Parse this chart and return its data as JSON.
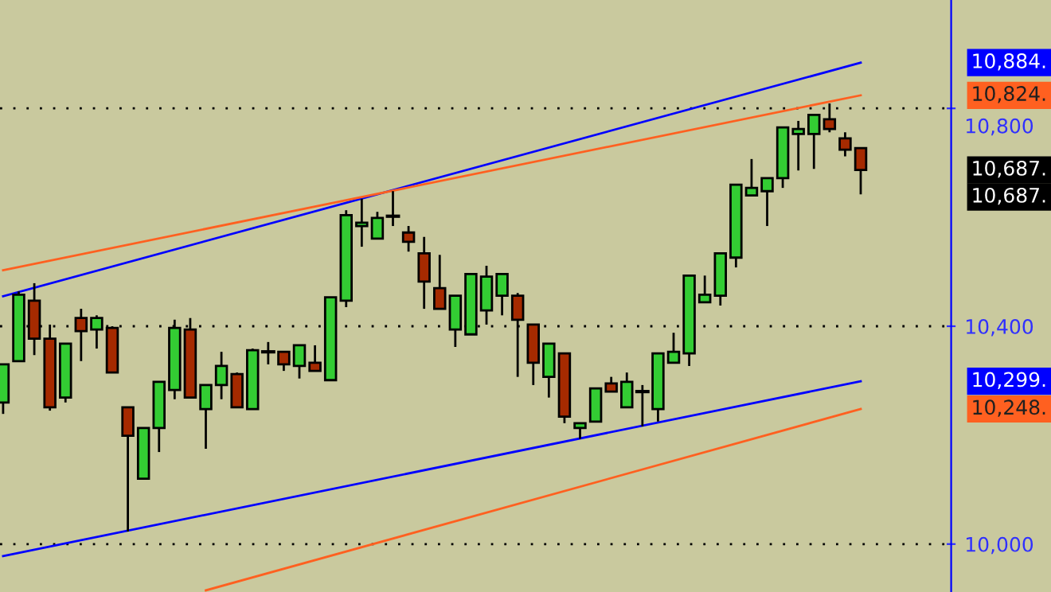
{
  "chart_data": {
    "type": "candlestick",
    "categories": [
      null,
      null,
      null,
      null,
      null,
      null,
      null,
      null,
      null,
      null,
      null,
      null,
      null,
      null,
      null,
      null,
      null,
      null,
      null,
      null,
      null,
      null,
      null,
      null,
      null,
      null,
      null,
      null,
      null,
      null,
      null,
      null,
      null,
      null,
      null,
      null,
      null,
      null,
      null,
      null,
      null,
      null,
      null,
      null,
      null,
      null,
      null,
      null,
      null,
      null,
      null,
      null,
      null,
      null,
      null,
      null
    ],
    "ohlc": [
      [
        10260,
        10330,
        10239,
        10330
      ],
      [
        10336,
        10464,
        10336,
        10458
      ],
      [
        10447,
        10479,
        10347,
        10377
      ],
      [
        10377,
        10403,
        10245,
        10251
      ],
      [
        10269,
        10368,
        10260,
        10368
      ],
      [
        10415,
        10432,
        10336,
        10391
      ],
      [
        10394,
        10420,
        10359,
        10415
      ],
      [
        10397,
        10400,
        10315,
        10315
      ],
      [
        10251,
        10251,
        10023,
        10199
      ],
      [
        10120,
        10213,
        10120,
        10213
      ],
      [
        10213,
        10298,
        10169,
        10298
      ],
      [
        10283,
        10412,
        10266,
        10397
      ],
      [
        10394,
        10415,
        10269,
        10269
      ],
      [
        10248,
        10292,
        10175,
        10292
      ],
      [
        10292,
        10353,
        10266,
        10327
      ],
      [
        10312,
        10315,
        10251,
        10251
      ],
      [
        10248,
        10359,
        10248,
        10356
      ],
      [
        10353,
        10371,
        10330,
        10353
      ],
      [
        10353,
        10353,
        10318,
        10330
      ],
      [
        10327,
        10365,
        10304,
        10365
      ],
      [
        10333,
        10365,
        10318,
        10318
      ],
      [
        10301,
        10453,
        10301,
        10453
      ],
      [
        10447,
        10613,
        10435,
        10604
      ],
      [
        10584,
        10634,
        10546,
        10590
      ],
      [
        10561,
        10610,
        10561,
        10599
      ],
      [
        10602,
        10648,
        10584,
        10602
      ],
      [
        10572,
        10584,
        10537,
        10555
      ],
      [
        10534,
        10564,
        10432,
        10482
      ],
      [
        10470,
        10531,
        10432,
        10432
      ],
      [
        10394,
        10456,
        10362,
        10456
      ],
      [
        10385,
        10496,
        10385,
        10496
      ],
      [
        10429,
        10511,
        10403,
        10491
      ],
      [
        10456,
        10496,
        10420,
        10496
      ],
      [
        10456,
        10461,
        10307,
        10412
      ],
      [
        10403,
        10403,
        10292,
        10333
      ],
      [
        10307,
        10368,
        10269,
        10368
      ],
      [
        10350,
        10350,
        10222,
        10234
      ],
      [
        10213,
        10222,
        10193,
        10222
      ],
      [
        10225,
        10286,
        10225,
        10286
      ],
      [
        10295,
        10307,
        10280,
        10280
      ],
      [
        10251,
        10315,
        10251,
        10298
      ],
      [
        10280,
        10292,
        10216,
        10280
      ],
      [
        10248,
        10350,
        10225,
        10350
      ],
      [
        10333,
        10388,
        10333,
        10353
      ],
      [
        10350,
        10493,
        10327,
        10493
      ],
      [
        10444,
        10493,
        10444,
        10458
      ],
      [
        10456,
        10534,
        10438,
        10534
      ],
      [
        10526,
        10660,
        10508,
        10660
      ],
      [
        10640,
        10707,
        10640,
        10654
      ],
      [
        10648,
        10672,
        10584,
        10672
      ],
      [
        10672,
        10765,
        10654,
        10765
      ],
      [
        10753,
        10777,
        10686,
        10762
      ],
      [
        10753,
        10788,
        10689,
        10788
      ],
      [
        10780,
        10809,
        10756,
        10762
      ],
      [
        10745,
        10756,
        10712,
        10724
      ],
      [
        10727,
        10727,
        10642,
        10687
      ]
    ],
    "series": [
      {
        "type": "line",
        "color": "#0000ff",
        "values": [
          10455,
          null,
          null,
          null,
          null,
          null,
          null,
          null,
          null,
          null,
          null,
          null,
          null,
          null,
          null,
          null,
          null,
          null,
          null,
          null,
          null,
          null,
          null,
          null,
          null,
          null,
          null,
          null,
          null,
          null,
          null,
          null,
          null,
          null,
          null,
          null,
          null,
          null,
          null,
          null,
          null,
          null,
          null,
          null,
          null,
          null,
          null,
          null,
          null,
          null,
          null,
          null,
          null,
          null,
          null,
          10884
        ]
      },
      {
        "type": "line",
        "color": "#ff6020",
        "values": [
          10503,
          null,
          null,
          null,
          null,
          null,
          null,
          null,
          null,
          null,
          null,
          null,
          null,
          null,
          null,
          null,
          null,
          null,
          null,
          null,
          null,
          null,
          null,
          null,
          null,
          null,
          null,
          null,
          null,
          null,
          null,
          null,
          null,
          null,
          null,
          null,
          null,
          null,
          null,
          null,
          null,
          null,
          null,
          null,
          null,
          null,
          null,
          null,
          null,
          null,
          null,
          null,
          null,
          null,
          null,
          10824
        ]
      },
      {
        "type": "line",
        "color": "#0000ff",
        "values": [
          9978,
          null,
          null,
          null,
          null,
          null,
          null,
          null,
          null,
          null,
          null,
          null,
          null,
          null,
          null,
          null,
          null,
          null,
          null,
          null,
          null,
          null,
          null,
          null,
          null,
          null,
          null,
          null,
          null,
          null,
          null,
          null,
          null,
          null,
          null,
          null,
          null,
          null,
          null,
          null,
          null,
          null,
          null,
          null,
          null,
          null,
          null,
          null,
          null,
          null,
          null,
          null,
          null,
          null,
          null,
          10299
        ]
      },
      {
        "type": "line",
        "color": "#ff6020",
        "values": [
          null,
          null,
          null,
          null,
          null,
          null,
          null,
          null,
          null,
          null,
          null,
          null,
          null,
          9915,
          null,
          null,
          null,
          null,
          null,
          null,
          null,
          null,
          null,
          null,
          null,
          null,
          null,
          null,
          null,
          null,
          null,
          null,
          null,
          null,
          null,
          null,
          null,
          null,
          null,
          null,
          null,
          null,
          null,
          null,
          null,
          null,
          null,
          null,
          null,
          null,
          null,
          null,
          null,
          null,
          null,
          10248
        ]
      }
    ],
    "ylim": [
      9912,
      10999
    ],
    "yticks": [
      {
        "value": 10000,
        "label": "10,000"
      },
      {
        "value": 10400,
        "label": "10,400"
      },
      {
        "value": 10800,
        "label": "10,800"
      }
    ],
    "grid": "y",
    "annotations": [
      "10,884.",
      "10,824.",
      "10,687.",
      "10,687.",
      "10,299.",
      "10,248."
    ]
  }
}
